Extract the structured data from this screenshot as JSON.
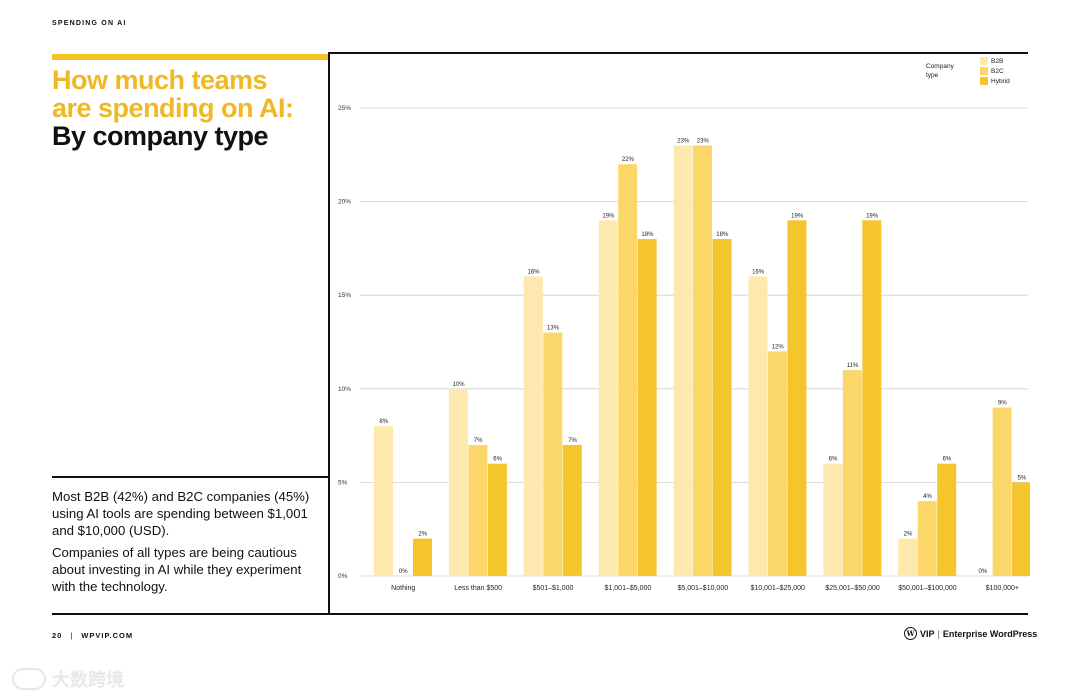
{
  "header": {
    "section_label": "SPENDING ON AI"
  },
  "title": {
    "line1": "How much teams",
    "line2": "are spending on AI:",
    "line3": "By company type"
  },
  "body": {
    "paragraph1": "Most B2B (42%) and B2C companies (45%) using AI tools are spending between $1,001 and $10,000 (USD).",
    "paragraph2": "Companies of all types are being cautious about investing in AI while they experiment with the technology."
  },
  "footer": {
    "page_number": "20",
    "separator": "|",
    "site": "WPVIP.COM",
    "brand_logo": "W",
    "brand_vip": "VIP",
    "brand_bar": "|",
    "brand_name": "Enterprise WordPress"
  },
  "watermark": {
    "text": "大数跨境"
  },
  "colors": {
    "b2b": "#fde9ad",
    "b2c": "#fad768",
    "hybrid": "#f5c52e",
    "accent": "#f5c324",
    "grid": "#d0d0d0"
  },
  "chart_data": {
    "type": "bar",
    "title": "How much teams are spending on AI: By company type",
    "xlabel": "",
    "ylabel": "",
    "ylim": [
      0,
      25
    ],
    "yticks": [
      0,
      5,
      10,
      15,
      20,
      25
    ],
    "ytick_labels": [
      "0%",
      "5%",
      "10%",
      "15%",
      "20%",
      "25%"
    ],
    "legend_title": "Company type",
    "legend_position": "top-right",
    "grid": true,
    "categories": [
      "Nothing",
      "Less than $500",
      "$501–$1,000",
      "$1,001–$5,000",
      "$5,001–$10,000",
      "$10,001–$25,000",
      "$25,001–$50,000",
      "$50,001–$100,000",
      "$100,000+"
    ],
    "series": [
      {
        "name": "B2B",
        "color": "#fde9ad",
        "values": [
          8,
          10,
          16,
          19,
          23,
          16,
          6,
          2,
          0
        ]
      },
      {
        "name": "B2C",
        "color": "#fad768",
        "values": [
          0,
          7,
          13,
          22,
          23,
          12,
          11,
          4,
          9
        ]
      },
      {
        "name": "Hybrid",
        "color": "#f5c52e",
        "values": [
          2,
          6,
          7,
          18,
          18,
          19,
          19,
          6,
          5
        ]
      }
    ]
  }
}
